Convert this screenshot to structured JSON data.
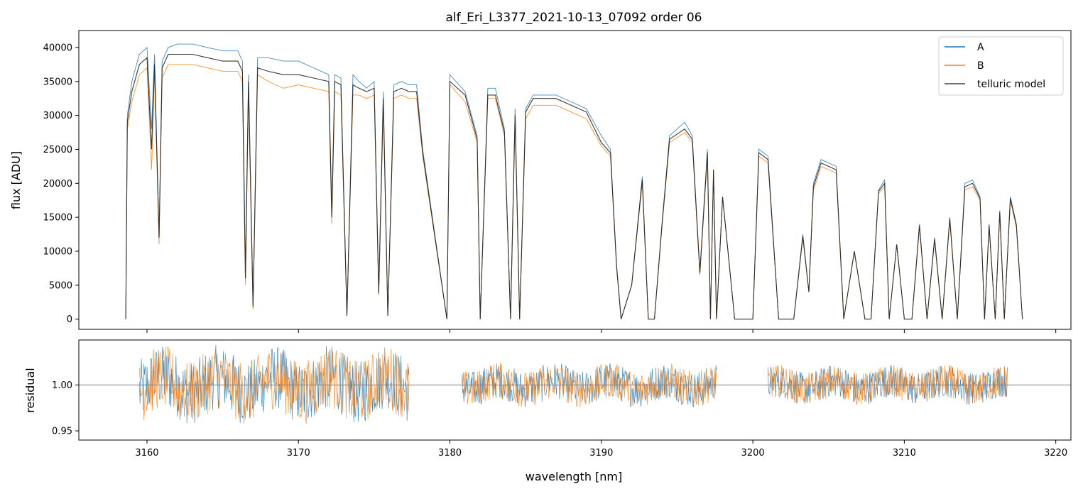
{
  "chart_data": [
    {
      "type": "line",
      "title": "alf_Eri_L3377_2021-10-13_07092  order 06",
      "xlabel": "",
      "ylabel": "flux [ADU]",
      "xlim": [
        3155.5,
        3221
      ],
      "ylim": [
        -1500,
        42500
      ],
      "yticks": [
        0,
        5000,
        10000,
        15000,
        20000,
        25000,
        30000,
        35000,
        40000
      ],
      "ytick_labels": [
        "0",
        "5000",
        "10000",
        "15000",
        "20000",
        "25000",
        "30000",
        "35000",
        "40000"
      ],
      "legend_position": "top-right",
      "legend": [
        "A",
        "B",
        "telluric model"
      ],
      "series": [
        {
          "name": "A",
          "color": "#1f77b4",
          "x": [
            3158.6,
            3158.7,
            3159.0,
            3159.5,
            3160.0,
            3160.3,
            3160.5,
            3160.8,
            3161.0,
            3161.4,
            3162.0,
            3163.0,
            3164.0,
            3165.0,
            3166.0,
            3166.3,
            3166.5,
            3166.7,
            3167.0,
            3167.3,
            3168.0,
            3169.0,
            3170.0,
            3171.0,
            3172.0,
            3172.2,
            3172.4,
            3172.8,
            3173.2,
            3173.6,
            3174.0,
            3174.5,
            3175.0,
            3175.3,
            3175.6,
            3175.9,
            3176.3,
            3176.8,
            3177.3,
            3177.8,
            3178.2,
            3179.8,
            3180.0,
            3181.0,
            3181.8,
            3182.0,
            3182.5,
            3183.0,
            3183.6,
            3184.0,
            3184.3,
            3184.6,
            3185.0,
            3185.5,
            3186.0,
            3187.0,
            3188.0,
            3189.0,
            3190.0,
            3190.6,
            3191.0,
            3191.3,
            3192.0,
            3192.7,
            3193.1,
            3193.5,
            3194.0,
            3194.5,
            3195.5,
            3196.0,
            3196.5,
            3197.0,
            3197.2,
            3197.4,
            3197.6,
            3198.0,
            3198.8,
            3200.0,
            3200.4,
            3201.0,
            3201.7,
            3202.0,
            3202.7,
            3203.3,
            3203.7,
            3204.0,
            3204.5,
            3205.5,
            3206.0,
            3206.7,
            3207.4,
            3207.8,
            3208.3,
            3208.7,
            3209.0,
            3209.5,
            3210.0,
            3210.5,
            3211.0,
            3211.5,
            3212.0,
            3212.5,
            3213.0,
            3213.5,
            3214.0,
            3214.5,
            3215.0,
            3215.3,
            3215.6,
            3216.0,
            3216.3,
            3216.6,
            3217.0,
            3217.4,
            3217.8
          ],
          "y": [
            0,
            30000,
            35000,
            39000,
            40000,
            28000,
            39000,
            12000,
            38000,
            40000,
            40500,
            40500,
            40000,
            39500,
            39500,
            38000,
            7000,
            36000,
            2000,
            38500,
            38500,
            38000,
            38000,
            37000,
            36000,
            16000,
            36000,
            35500,
            500,
            36000,
            35000,
            34000,
            35000,
            4000,
            33500,
            500,
            34500,
            35000,
            34500,
            34500,
            25000,
            0,
            36000,
            33500,
            27000,
            0,
            34000,
            34000,
            28000,
            0,
            31000,
            0,
            31000,
            33000,
            33000,
            33000,
            32000,
            31000,
            27000,
            25000,
            8000,
            0,
            5000,
            21000,
            0,
            0,
            14000,
            27000,
            29000,
            27000,
            7000,
            25000,
            0,
            22000,
            0,
            18000,
            0,
            0,
            25000,
            24000,
            0,
            0,
            0,
            12500,
            4000,
            20000,
            23500,
            22500,
            0,
            10000,
            0,
            0,
            19000,
            20500,
            0,
            11000,
            0,
            0,
            14000,
            0,
            12000,
            0,
            15000,
            0,
            20000,
            20500,
            18000,
            0,
            14000,
            0,
            16000,
            0,
            18000,
            14000,
            0
          ]
        },
        {
          "name": "B",
          "color": "#ff7f0e",
          "x": [
            3158.6,
            3158.7,
            3159.0,
            3159.5,
            3160.0,
            3160.3,
            3160.5,
            3160.8,
            3161.0,
            3161.4,
            3162.0,
            3163.0,
            3164.0,
            3165.0,
            3166.0,
            3166.3,
            3166.5,
            3166.7,
            3167.0,
            3167.3,
            3168.0,
            3169.0,
            3170.0,
            3171.0,
            3172.0,
            3172.2,
            3172.4,
            3172.8,
            3173.2,
            3173.6,
            3174.0,
            3174.5,
            3175.0,
            3175.3,
            3175.6,
            3175.9,
            3176.3,
            3176.8,
            3177.3,
            3177.8,
            3178.2,
            3179.8,
            3180.0,
            3181.0,
            3181.8,
            3182.0,
            3182.5,
            3183.0,
            3183.6,
            3184.0,
            3184.3,
            3184.6,
            3185.0,
            3185.5,
            3186.0,
            3187.0,
            3188.0,
            3189.0,
            3190.0,
            3190.6,
            3191.0,
            3191.3,
            3192.0,
            3192.7,
            3193.1,
            3193.5,
            3194.0,
            3194.5,
            3195.5,
            3196.0,
            3196.5,
            3197.0,
            3197.2,
            3197.4,
            3197.6,
            3198.0,
            3198.8,
            3200.0,
            3200.4,
            3201.0,
            3201.7,
            3202.0,
            3202.7,
            3203.3,
            3203.7,
            3204.0,
            3204.5,
            3205.5,
            3206.0,
            3206.7,
            3207.4,
            3207.8,
            3208.3,
            3208.7,
            3209.0,
            3209.5,
            3210.0,
            3210.5,
            3211.0,
            3211.5,
            3212.0,
            3212.5,
            3213.0,
            3213.5,
            3214.0,
            3214.5,
            3215.0,
            3215.3,
            3215.6,
            3216.0,
            3216.3,
            3216.6,
            3217.0,
            3217.4,
            3217.8
          ],
          "y": [
            0,
            28000,
            32000,
            36000,
            37000,
            22000,
            36000,
            11000,
            35500,
            37500,
            37500,
            37500,
            37000,
            36500,
            36500,
            35000,
            5000,
            33500,
            1500,
            36000,
            35000,
            34000,
            34500,
            34000,
            33500,
            14000,
            33500,
            33000,
            500,
            33000,
            33000,
            32500,
            33000,
            3500,
            31500,
            500,
            32500,
            33000,
            32500,
            32500,
            24000,
            0,
            34500,
            32000,
            26000,
            0,
            32500,
            32500,
            27000,
            0,
            29500,
            0,
            29500,
            31500,
            31500,
            31500,
            30500,
            29500,
            25500,
            24000,
            7500,
            0,
            5000,
            20000,
            0,
            0,
            13500,
            26000,
            27500,
            26000,
            6500,
            24000,
            0,
            21500,
            0,
            18000,
            0,
            0,
            24000,
            23000,
            0,
            0,
            0,
            12000,
            4000,
            19000,
            22500,
            21500,
            0,
            10000,
            0,
            0,
            18500,
            19500,
            0,
            11000,
            0,
            0,
            13500,
            0,
            11500,
            0,
            14500,
            0,
            19000,
            19500,
            17500,
            0,
            13500,
            0,
            15500,
            0,
            17500,
            13500,
            0
          ]
        },
        {
          "name": "telluric model",
          "color": "#222222",
          "x": [
            3158.6,
            3158.7,
            3159.0,
            3159.5,
            3160.0,
            3160.3,
            3160.5,
            3160.8,
            3161.0,
            3161.4,
            3162.0,
            3163.0,
            3164.0,
            3165.0,
            3166.0,
            3166.3,
            3166.5,
            3166.7,
            3167.0,
            3167.3,
            3168.0,
            3169.0,
            3170.0,
            3171.0,
            3172.0,
            3172.2,
            3172.4,
            3172.8,
            3173.2,
            3173.6,
            3174.0,
            3174.5,
            3175.0,
            3175.3,
            3175.6,
            3175.9,
            3176.3,
            3176.8,
            3177.3,
            3177.8,
            3178.2,
            3179.8,
            3180.0,
            3181.0,
            3181.8,
            3182.0,
            3182.5,
            3183.0,
            3183.6,
            3184.0,
            3184.3,
            3184.6,
            3185.0,
            3185.5,
            3186.0,
            3187.0,
            3188.0,
            3189.0,
            3190.0,
            3190.6,
            3191.0,
            3191.3,
            3192.0,
            3192.7,
            3193.1,
            3193.5,
            3194.0,
            3194.5,
            3195.5,
            3196.0,
            3196.5,
            3197.0,
            3197.2,
            3197.4,
            3197.6,
            3198.0,
            3198.8,
            3200.0,
            3200.4,
            3201.0,
            3201.7,
            3202.0,
            3202.7,
            3203.3,
            3203.7,
            3204.0,
            3204.5,
            3205.5,
            3206.0,
            3206.7,
            3207.4,
            3207.8,
            3208.3,
            3208.7,
            3209.0,
            3209.5,
            3210.0,
            3210.5,
            3211.0,
            3211.5,
            3212.0,
            3212.5,
            3213.0,
            3213.5,
            3214.0,
            3214.5,
            3215.0,
            3215.3,
            3215.6,
            3216.0,
            3216.3,
            3216.6,
            3217.0,
            3217.4,
            3217.8
          ],
          "y": [
            0,
            29000,
            33500,
            37500,
            38500,
            25000,
            37500,
            12000,
            37000,
            39000,
            39000,
            39000,
            38500,
            38000,
            38000,
            36500,
            6000,
            35000,
            1800,
            37000,
            36500,
            36000,
            36000,
            35500,
            35000,
            15000,
            35000,
            34500,
            500,
            34500,
            34000,
            33500,
            34000,
            3800,
            32500,
            500,
            33500,
            34000,
            33500,
            33500,
            24500,
            0,
            35000,
            33000,
            26500,
            0,
            33000,
            33000,
            27500,
            0,
            30000,
            0,
            30500,
            32500,
            32500,
            32500,
            31500,
            30500,
            26000,
            24500,
            7800,
            0,
            5000,
            20500,
            0,
            0,
            13800,
            26500,
            28000,
            26500,
            6800,
            24500,
            0,
            22000,
            0,
            18000,
            0,
            0,
            24500,
            23500,
            0,
            0,
            0,
            12200,
            4000,
            19500,
            23000,
            22000,
            0,
            10000,
            0,
            0,
            18800,
            20000,
            0,
            11000,
            0,
            0,
            13800,
            0,
            11800,
            0,
            14800,
            0,
            19500,
            20000,
            17800,
            0,
            13800,
            0,
            15800,
            0,
            17800,
            13800,
            0
          ]
        }
      ]
    },
    {
      "type": "line",
      "title": "",
      "xlabel": "wavelength [nm]",
      "ylabel": "residual",
      "xlim": [
        3155.5,
        3221
      ],
      "ylim": [
        0.94,
        1.049
      ],
      "xticks": [
        3160,
        3170,
        3180,
        3190,
        3200,
        3210,
        3220
      ],
      "xtick_labels": [
        "3160",
        "3170",
        "3180",
        "3190",
        "3200",
        "3210",
        "3220"
      ],
      "yticks": [
        0.95,
        1.0
      ],
      "ytick_labels": [
        "0.95",
        "1.00"
      ],
      "reference_line": 1.0,
      "series": [
        {
          "name": "A",
          "color": "#1f77b4",
          "x_range": [
            3159.5,
            3177.3
          ],
          "noise": 0.035
        },
        {
          "name": "A",
          "color": "#1f77b4",
          "x_range": [
            3180.8,
            3197.6
          ],
          "noise": 0.02
        },
        {
          "name": "A",
          "color": "#1f77b4",
          "x_range": [
            3201.0,
            3216.8
          ],
          "noise": 0.018
        },
        {
          "name": "B",
          "color": "#ff7f0e",
          "x_range": [
            3159.5,
            3177.3
          ],
          "noise": 0.035
        },
        {
          "name": "B",
          "color": "#ff7f0e",
          "x_range": [
            3180.8,
            3197.6
          ],
          "noise": 0.02
        },
        {
          "name": "B",
          "color": "#ff7f0e",
          "x_range": [
            3201.0,
            3216.8
          ],
          "noise": 0.018
        }
      ]
    }
  ]
}
